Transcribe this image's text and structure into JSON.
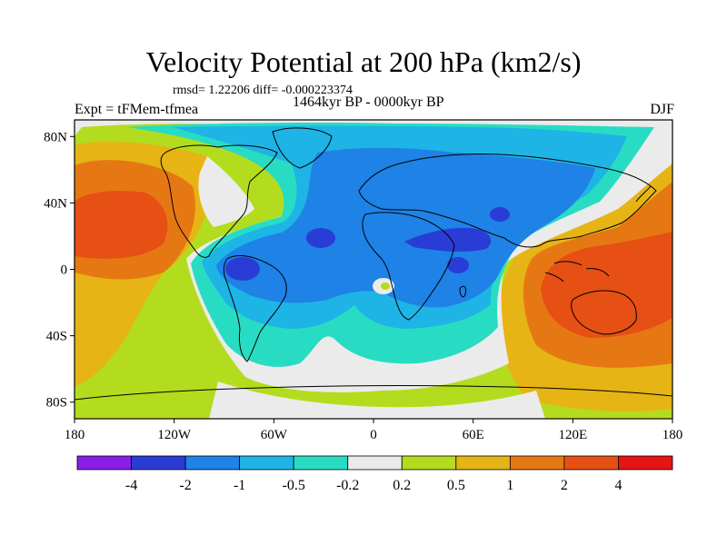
{
  "title": "Velocity Potential at 200 hPa (km2/s)",
  "stats": "rmsd= 1.22206 diff= -0.000223374",
  "experiment": "Expt = tFMem-tfmea",
  "period": "1464kyr BP - 0000kyr BP",
  "season": "DJF",
  "lat_labels": [
    "80N",
    "40N",
    "0",
    "40S",
    "80S"
  ],
  "lat_values": [
    80,
    40,
    0,
    -40,
    -80
  ],
  "lon_labels": [
    "180",
    "120W",
    "60W",
    "0",
    "60E",
    "120E",
    "180"
  ],
  "lon_values": [
    -180,
    -120,
    -60,
    0,
    60,
    120,
    180
  ],
  "colorbar": {
    "labels": [
      "-4",
      "-2",
      "-1",
      "-0.5",
      "-0.2",
      "0.2",
      "0.5",
      "1",
      "2",
      "4"
    ],
    "colors": [
      "#8a1ee6",
      "#2a3cd6",
      "#1e82e6",
      "#1eb4e6",
      "#28dcc3",
      "#ebebeb",
      "#b4dc1e",
      "#e6b414",
      "#e67814",
      "#e65014",
      "#e61414"
    ]
  },
  "colors": {
    "bg_positive": "#b4dc1e",
    "level_0_5": "#e6b414",
    "level_1": "#e67814",
    "level_2": "#e65014",
    "neutral": "#ebebeb",
    "level_neg_0_2": "#28dcc3",
    "level_neg_0_5": "#1eb4e6",
    "level_neg_1": "#1e82e6",
    "level_neg_2": "#2a3cd6"
  }
}
